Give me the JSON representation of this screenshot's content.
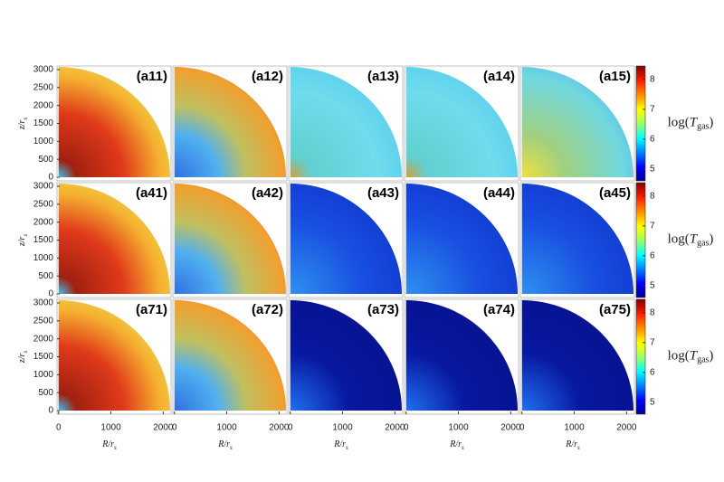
{
  "chart_data": {
    "type": "heatmap-grid",
    "panels": [
      [
        "(a11)",
        "(a12)",
        "(a13)",
        "(a14)",
        "(a15)"
      ],
      [
        "(a41)",
        "(a42)",
        "(a43)",
        "(a44)",
        "(a45)"
      ],
      [
        "(a71)",
        "(a72)",
        "(a73)",
        "(a74)",
        "(a75)"
      ]
    ],
    "xlabel": {
      "text": "R/r",
      "sub": "s"
    },
    "ylabel": {
      "text": "z/r",
      "sub": "s"
    },
    "xlim": [
      -30,
      2150
    ],
    "xticks": [
      0,
      1000,
      2000
    ],
    "ylim": [
      -100,
      3100
    ],
    "yticks": [
      0,
      500,
      1000,
      1500,
      2000,
      2500,
      3000
    ],
    "colorbar": {
      "label": {
        "text": "log(",
        "italic": "T",
        "sub": "gas",
        "tail": ")"
      },
      "lim": [
        4.6,
        8.45
      ],
      "ticks": [
        5,
        6,
        7,
        8
      ]
    }
  }
}
